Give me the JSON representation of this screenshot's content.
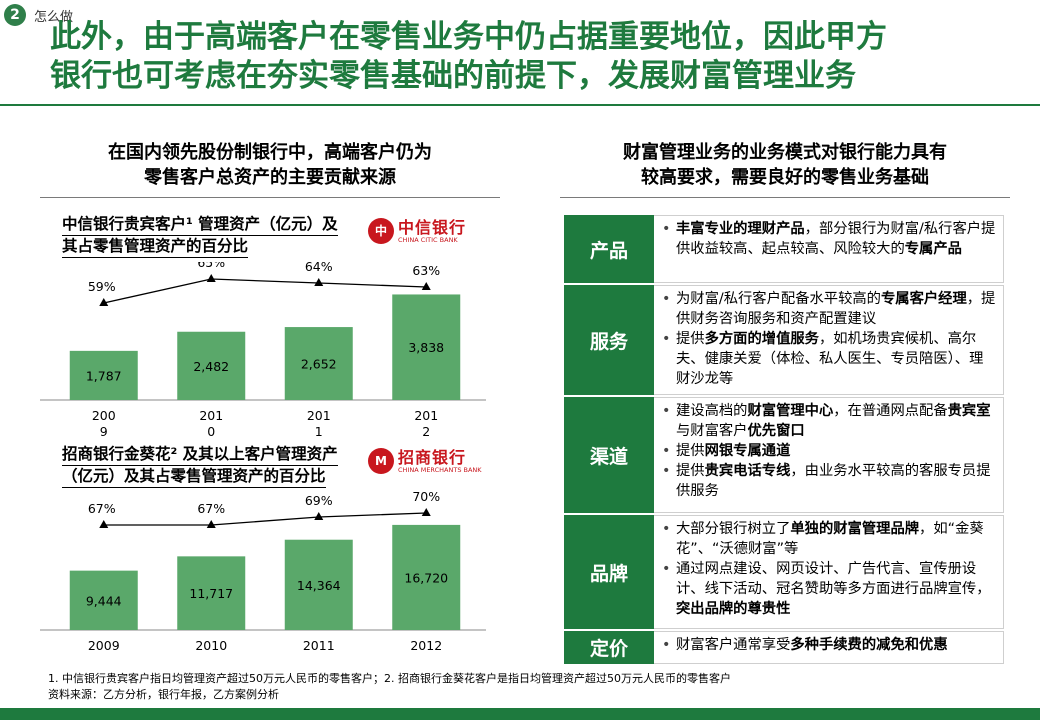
{
  "header": {
    "step_number": "2",
    "step_label": "怎么做",
    "title_line1": "此外，由于高端客户在零售业务中仍占据重要地位，因此甲方",
    "title_line2": "银行也可考虑在夯实零售基础的前提下，发展财富管理业务"
  },
  "left": {
    "heading_line1": "在国内领先股份制银行中，高端客户仍为",
    "heading_line2": "零售客户总资产的主要贡献来源"
  },
  "right": {
    "heading_line1": "财富管理业务的业务模式对银行能力具有",
    "heading_line2": "较高要求，需要良好的零售业务基础"
  },
  "logos": {
    "citic_mark": "中",
    "citic_cn": "中信银行",
    "citic_en": "CHINA CITIC BANK",
    "cmb_mark": "M",
    "cmb_cn": "招商银行",
    "cmb_en": "CHINA MERCHANTS BANK"
  },
  "chart_data": [
    {
      "type": "bar",
      "title_line1": "中信银行贵宾客户¹ 管理资产（亿元）及",
      "title_line2": "其占零售管理资产的百分比",
      "categories": [
        "2009",
        "2010",
        "2011",
        "2012"
      ],
      "category_labels": [
        [
          "200",
          "9"
        ],
        [
          "201",
          "0"
        ],
        [
          "201",
          "1"
        ],
        [
          "201",
          "2"
        ]
      ],
      "values": [
        1787,
        2482,
        2652,
        3838
      ],
      "value_labels": [
        "1,787",
        "2,482",
        "2,652",
        "3,838"
      ],
      "share": [
        59,
        65,
        64,
        63
      ],
      "share_labels": [
        "59%",
        "65%",
        "64%",
        "63%"
      ],
      "ylim": [
        0,
        4000
      ],
      "bar_color": "#5aa86a"
    },
    {
      "type": "bar",
      "title_line1": "招商银行金葵花² 及其以上客户管理资产",
      "title_line2": "（亿元）及其占零售管理资产的百分比",
      "categories": [
        "2009",
        "2010",
        "2011",
        "2012"
      ],
      "category_labels": [
        [
          "2009"
        ],
        [
          "2010"
        ],
        [
          "2011"
        ],
        [
          "2012"
        ]
      ],
      "values": [
        9444,
        11717,
        14364,
        16720
      ],
      "value_labels": [
        "9,444",
        "11,717",
        "14,364",
        "16,720"
      ],
      "share": [
        67,
        67,
        69,
        70
      ],
      "share_labels": [
        "67%",
        "67%",
        "69%",
        "70%"
      ],
      "ylim": [
        0,
        17500
      ],
      "bar_color": "#5aa86a"
    }
  ],
  "rows": [
    {
      "label": "产品",
      "bullets": [
        [
          {
            "t": "丰富专业的理财产品",
            "b": true
          },
          {
            "t": "，部分银行为财富/私行客户提供收益较高、起点较高、风险较大的",
            "b": false
          },
          {
            "t": "专属产品",
            "b": true
          }
        ]
      ]
    },
    {
      "label": "服务",
      "bullets": [
        [
          {
            "t": "为财富/私行客户配备水平较高的",
            "b": false
          },
          {
            "t": "专属客户经理",
            "b": true
          },
          {
            "t": "，提供财务咨询服务和资产配置建议",
            "b": false
          }
        ],
        [
          {
            "t": "提供",
            "b": false
          },
          {
            "t": "多方面的增值服务",
            "b": true
          },
          {
            "t": "，如机场贵宾候机、高尔夫、健康关爱（体检、私人医生、专员陪医）、理财沙龙等",
            "b": false
          }
        ]
      ]
    },
    {
      "label": "渠道",
      "bullets": [
        [
          {
            "t": "建设高档的",
            "b": false
          },
          {
            "t": "财富管理中心",
            "b": true
          },
          {
            "t": "，在普通网点配备",
            "b": false
          },
          {
            "t": "贵宾室",
            "b": true
          },
          {
            "t": "与财富客户",
            "b": false
          },
          {
            "t": "优先窗口",
            "b": true
          }
        ],
        [
          {
            "t": "提供",
            "b": false
          },
          {
            "t": "网银专属通道",
            "b": true
          }
        ],
        [
          {
            "t": "提供",
            "b": false
          },
          {
            "t": "贵宾电话专线",
            "b": true
          },
          {
            "t": "，由业务水平较高的客服专员提供服务",
            "b": false
          }
        ]
      ]
    },
    {
      "label": "品牌",
      "bullets": [
        [
          {
            "t": "大部分银行树立了",
            "b": false
          },
          {
            "t": "单独的财富管理品牌",
            "b": true
          },
          {
            "t": "，如“金葵花”、“沃德财富”等",
            "b": false
          }
        ],
        [
          {
            "t": "通过网点建设、网页设计、广告代言、宣传册设计、线下活动、冠名赞助等多方面进行品牌宣传，",
            "b": false
          },
          {
            "t": "突出品牌的尊贵性",
            "b": true
          }
        ]
      ]
    },
    {
      "label": "定价",
      "bullets": [
        [
          {
            "t": "财富客户通常享受",
            "b": false
          },
          {
            "t": "多种手续费的减免和优惠",
            "b": true
          }
        ]
      ]
    }
  ],
  "footnotes": {
    "line1": "1. 中信银行贵宾客户指日均管理资产超过50万元人民币的零售客户；2. 招商银行金葵花客户是指日均管理资产超过50万元人民币的零售客户",
    "line2": "资料来源：乙方分析，银行年报，乙方案例分析"
  }
}
